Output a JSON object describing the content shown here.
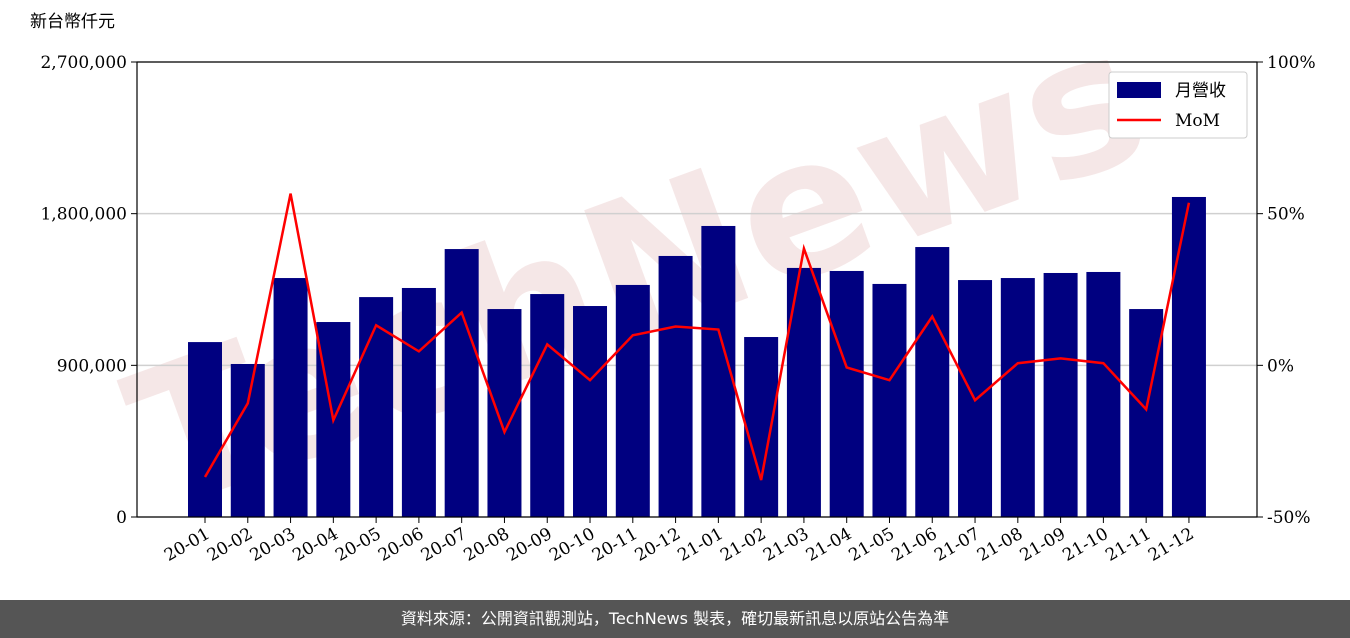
{
  "chart_data": {
    "type": "bar_line",
    "y_label": "新台幣仟元",
    "watermark": "TechNews",
    "categories": [
      "20-01",
      "20-02",
      "20-03",
      "20-04",
      "20-05",
      "20-06",
      "20-07",
      "20-08",
      "20-09",
      "20-10",
      "20-11",
      "20-12",
      "21-01",
      "21-02",
      "21-03",
      "21-04",
      "21-05",
      "21-06",
      "21-07",
      "21-08",
      "21-09",
      "21-10",
      "21-11",
      "21-12"
    ],
    "series": [
      {
        "name": "月營收",
        "color": "#000080",
        "type": "bar",
        "values": [
          1038000,
          908000,
          1418000,
          1157000,
          1305000,
          1359000,
          1590000,
          1234000,
          1323000,
          1252000,
          1377000,
          1549000,
          1727000,
          1068000,
          1478000,
          1460000,
          1383000,
          1602000,
          1406000,
          1418000,
          1448000,
          1454000,
          1234000,
          1899000
        ]
      },
      {
        "name": "MoM",
        "color": "#ff0000",
        "type": "line",
        "axis": "y2",
        "values": [
          -36.8,
          -12.5,
          56.6,
          -18.1,
          13.2,
          4.6,
          17.4,
          -22.0,
          6.9,
          -4.9,
          9.9,
          12.8,
          11.8,
          -37.8,
          38.5,
          -0.7,
          -4.9,
          16.1,
          -11.5,
          0.7,
          2.3,
          0.7,
          -14.5,
          53.6
        ]
      }
    ],
    "ylim": [
      0,
      2700000
    ],
    "yticks": [
      0,
      {
        "value": 900000,
        "label": "900,000"
      },
      {
        "value": 1800000,
        "label": "1,800,000"
      },
      {
        "value": 2700000,
        "label": "2,700,000"
      }
    ],
    "y2lim": [
      -50,
      100
    ],
    "y2ticks": [
      {
        "value": -50,
        "label": "-50%"
      },
      {
        "value": 0,
        "label": "0%"
      },
      {
        "value": 50,
        "label": "50%"
      },
      {
        "value": 100,
        "label": "100%"
      }
    ],
    "grid": true,
    "legend": "upper right",
    "footer": "資料來源：公開資訊觀測站，TechNews 製表，確切最新訊息以原站公告為準"
  }
}
